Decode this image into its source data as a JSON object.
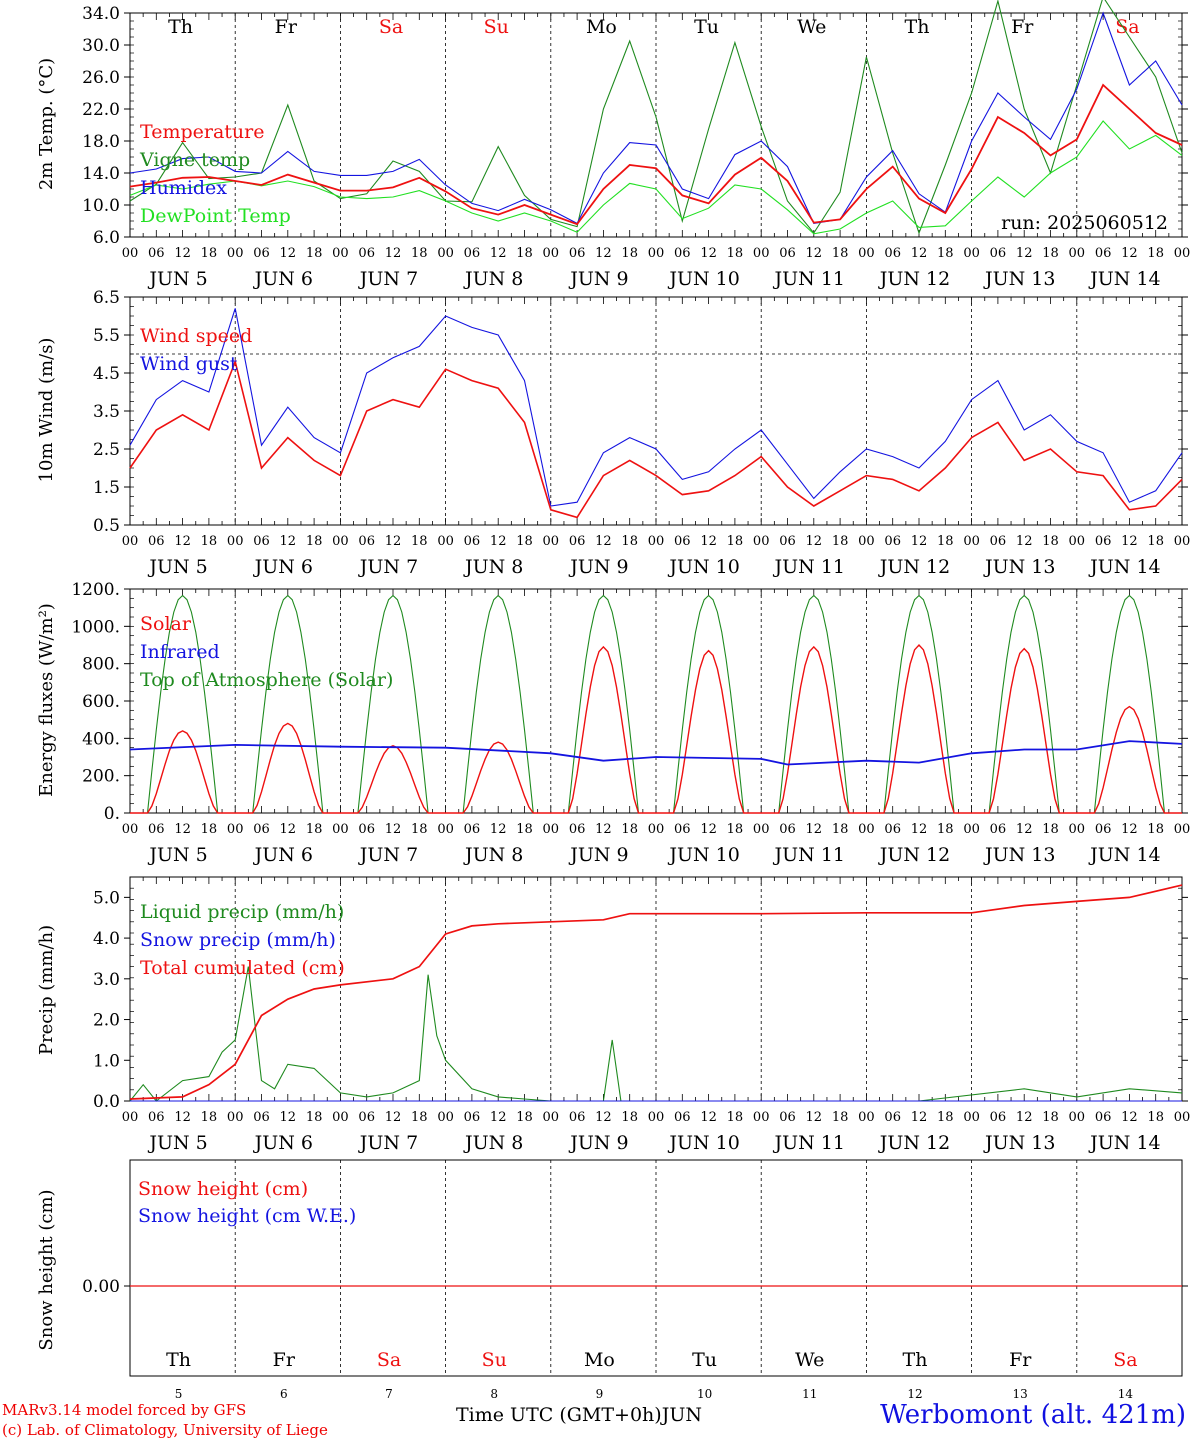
{
  "credits": {
    "line1": "MARv3.14 model forced by GFS",
    "line2": "(c) Lab. of Climatology, University of Liege"
  },
  "station": "Werbomont (alt. 421m)",
  "x_axis_title": "Time UTC (GMT+0h)",
  "month": "JUN",
  "run_label": "run: 2025060512",
  "days": [
    {
      "abbr": "Th",
      "date": 5,
      "weekend": false
    },
    {
      "abbr": "Fr",
      "date": 6,
      "weekend": false
    },
    {
      "abbr": "Sa",
      "date": 7,
      "weekend": true
    },
    {
      "abbr": "Su",
      "date": 8,
      "weekend": true
    },
    {
      "abbr": "Mo",
      "date": 9,
      "weekend": false
    },
    {
      "abbr": "Tu",
      "date": 10,
      "weekend": false
    },
    {
      "abbr": "We",
      "date": 11,
      "weekend": false
    },
    {
      "abbr": "Th",
      "date": 12,
      "weekend": false
    },
    {
      "abbr": "Fr",
      "date": 13,
      "weekend": false
    },
    {
      "abbr": "Sa",
      "date": 14,
      "weekend": true
    }
  ],
  "hour_ticks": [
    "00",
    "06",
    "12",
    "18"
  ],
  "colors": {
    "red": "#ee1111",
    "green": "#1f8a1f",
    "blue": "#1414e0",
    "lightgreen": "#22e022",
    "weekend": "#ee1111"
  },
  "chart_data": [
    {
      "type": "line",
      "ylabel": "2m Temp. (°C)",
      "ylim": [
        6.0,
        34.0
      ],
      "yticks": [
        "6.0",
        "10.0",
        "14.0",
        "18.0",
        "22.0",
        "26.0",
        "30.0",
        "34.0"
      ],
      "x_unit": "hours since JUN 5 00 UTC",
      "series": [
        {
          "name": "Temperature",
          "color": "red",
          "x": [
            0,
            6,
            12,
            18,
            24,
            30,
            36,
            42,
            48,
            54,
            60,
            66,
            72,
            78,
            84,
            90,
            96,
            102,
            108,
            114,
            120,
            126,
            132,
            138,
            144,
            150,
            156,
            162,
            168,
            174,
            180,
            186,
            192,
            198,
            204,
            210,
            216,
            222,
            228,
            234,
            240
          ],
          "values": [
            12.3,
            12.8,
            13.4,
            13.5,
            13.0,
            12.5,
            13.8,
            12.8,
            11.8,
            11.8,
            12.2,
            13.4,
            11.7,
            9.6,
            8.8,
            10.0,
            8.8,
            7.6,
            12.0,
            15.0,
            14.6,
            11.2,
            10.2,
            13.8,
            15.9,
            13.0,
            7.8,
            8.2,
            12.0,
            14.8,
            10.8,
            9.0,
            14.5,
            21.0,
            19.0,
            16.2,
            18.2,
            25.0,
            22.0,
            19.0,
            17.5
          ]
        },
        {
          "name": "Vigne temp",
          "color": "green",
          "x": [
            0,
            6,
            12,
            18,
            24,
            30,
            36,
            42,
            48,
            54,
            60,
            66,
            72,
            78,
            84,
            90,
            96,
            102,
            108,
            114,
            120,
            126,
            132,
            138,
            144,
            150,
            156,
            162,
            168,
            174,
            180,
            186,
            192,
            198,
            204,
            210,
            216,
            222,
            228,
            234,
            240
          ],
          "values": [
            10.5,
            12.6,
            17.8,
            13.3,
            13.5,
            14.0,
            22.5,
            13.0,
            10.8,
            11.4,
            15.5,
            14.2,
            10.5,
            10.4,
            17.3,
            11.2,
            8.2,
            7.3,
            22.0,
            30.5,
            21.0,
            8.0,
            19.5,
            30.3,
            19.8,
            10.5,
            6.5,
            11.6,
            28.5,
            16.5,
            6.5,
            15.0,
            24.0,
            35.5,
            22.0,
            14.0,
            25.0,
            36.0,
            31.0,
            26.0,
            16.5
          ]
        },
        {
          "name": "Humidex",
          "color": "blue",
          "x": [
            0,
            6,
            12,
            18,
            24,
            30,
            36,
            42,
            48,
            54,
            60,
            66,
            72,
            78,
            84,
            90,
            96,
            102,
            108,
            114,
            120,
            126,
            132,
            138,
            144,
            150,
            156,
            162,
            168,
            174,
            180,
            186,
            192,
            198,
            204,
            210,
            216,
            222,
            228,
            234,
            240
          ],
          "values": [
            14.0,
            14.5,
            15.8,
            16.0,
            14.2,
            14.0,
            16.7,
            14.2,
            13.7,
            13.7,
            14.2,
            15.7,
            12.5,
            10.2,
            9.3,
            10.7,
            9.4,
            7.7,
            14.0,
            17.8,
            17.5,
            12.0,
            10.8,
            16.3,
            18.0,
            14.8,
            7.7,
            8.2,
            13.5,
            16.8,
            11.4,
            9.1,
            18.0,
            24.0,
            21.0,
            18.2,
            24.5,
            34.0,
            25.0,
            28.0,
            22.5
          ]
        },
        {
          "name": "DewPoint Temp",
          "color": "lightgreen",
          "x": [
            0,
            6,
            12,
            18,
            24,
            30,
            36,
            42,
            48,
            54,
            60,
            66,
            72,
            78,
            84,
            90,
            96,
            102,
            108,
            114,
            120,
            126,
            132,
            138,
            144,
            150,
            156,
            162,
            168,
            174,
            180,
            186,
            192,
            198,
            204,
            210,
            216,
            222,
            228,
            234,
            240
          ],
          "values": [
            11.2,
            12.5,
            12.0,
            12.6,
            13.0,
            12.4,
            13.0,
            12.3,
            11.0,
            10.8,
            11.0,
            11.8,
            10.5,
            9.0,
            8.0,
            9.0,
            8.0,
            6.6,
            10.0,
            12.7,
            12.0,
            8.3,
            9.6,
            12.5,
            12.0,
            9.4,
            6.4,
            7.0,
            9.0,
            10.5,
            7.2,
            7.4,
            10.5,
            13.5,
            11.0,
            14.0,
            16.0,
            20.5,
            17.0,
            18.7,
            16.2
          ]
        }
      ]
    },
    {
      "type": "line",
      "ylabel": "10m Wind (m/s)",
      "ylim": [
        0.5,
        6.5
      ],
      "yticks": [
        "0.5",
        "1.5",
        "2.5",
        "3.5",
        "4.5",
        "5.5",
        "6.5"
      ],
      "x_unit": "hours since JUN 5 00 UTC",
      "series": [
        {
          "name": "Wind speed",
          "color": "red",
          "x": [
            0,
            6,
            12,
            18,
            24,
            30,
            36,
            42,
            48,
            54,
            60,
            66,
            72,
            78,
            84,
            90,
            96,
            102,
            108,
            114,
            120,
            126,
            132,
            138,
            144,
            150,
            156,
            162,
            168,
            174,
            180,
            186,
            192,
            198,
            204,
            210,
            216,
            222,
            228,
            234,
            240
          ],
          "values": [
            2.0,
            3.0,
            3.4,
            3.0,
            4.8,
            2.0,
            2.8,
            2.2,
            1.8,
            3.5,
            3.8,
            3.6,
            4.6,
            4.3,
            4.1,
            3.2,
            0.9,
            0.7,
            1.8,
            2.2,
            1.8,
            1.3,
            1.4,
            1.8,
            2.3,
            1.5,
            1.0,
            1.4,
            1.8,
            1.7,
            1.4,
            2.0,
            2.8,
            3.2,
            2.2,
            2.5,
            1.9,
            1.8,
            0.9,
            1.0,
            1.7
          ]
        },
        {
          "name": "Wind gust",
          "color": "blue",
          "x": [
            0,
            6,
            12,
            18,
            24,
            30,
            36,
            42,
            48,
            54,
            60,
            66,
            72,
            78,
            84,
            90,
            96,
            102,
            108,
            114,
            120,
            126,
            132,
            138,
            144,
            150,
            156,
            162,
            168,
            174,
            180,
            186,
            192,
            198,
            204,
            210,
            216,
            222,
            228,
            234,
            240
          ],
          "values": [
            2.6,
            3.8,
            4.3,
            4.0,
            6.2,
            2.6,
            3.6,
            2.8,
            2.4,
            4.5,
            4.9,
            5.2,
            6.0,
            5.7,
            5.5,
            4.3,
            1.0,
            1.1,
            2.4,
            2.8,
            2.5,
            1.7,
            1.9,
            2.5,
            3.0,
            2.1,
            1.2,
            1.9,
            2.5,
            2.3,
            2.0,
            2.7,
            3.8,
            4.3,
            3.0,
            3.4,
            2.7,
            2.4,
            1.1,
            1.4,
            2.4
          ]
        }
      ]
    },
    {
      "type": "line",
      "ylabel": "Energy fluxes (W/m²)",
      "ylim": [
        0,
        1200
      ],
      "yticks": [
        "0.",
        "200.",
        "400.",
        "600.",
        "800.",
        "1000.",
        "1200."
      ],
      "x_unit": "hours since JUN 5 00 UTC",
      "solar_noon_peaks": [
        {
          "day_hour": 12,
          "toa": 1165,
          "solar": 440
        },
        {
          "day_hour": 36,
          "toa": 1165,
          "solar": 480
        },
        {
          "day_hour": 60,
          "toa": 1165,
          "solar": 360
        },
        {
          "day_hour": 84,
          "toa": 1165,
          "solar": 380
        },
        {
          "day_hour": 108,
          "toa": 1165,
          "solar": 890
        },
        {
          "day_hour": 132,
          "toa": 1165,
          "solar": 870
        },
        {
          "day_hour": 156,
          "toa": 1165,
          "solar": 890
        },
        {
          "day_hour": 180,
          "toa": 1165,
          "solar": 900
        },
        {
          "day_hour": 204,
          "toa": 1165,
          "solar": 880
        },
        {
          "day_hour": 228,
          "toa": 1165,
          "solar": 570
        }
      ],
      "series": [
        {
          "name": "Solar",
          "color": "red"
        },
        {
          "name": "Infrared",
          "color": "blue",
          "x": [
            0,
            24,
            48,
            72,
            96,
            108,
            120,
            144,
            150,
            168,
            180,
            192,
            204,
            216,
            228,
            240
          ],
          "values": [
            340,
            365,
            355,
            350,
            320,
            280,
            300,
            290,
            260,
            280,
            270,
            320,
            340,
            340,
            385,
            370
          ]
        },
        {
          "name": "Top of Atmosphere (Solar)",
          "color": "green"
        }
      ]
    },
    {
      "type": "line",
      "ylabel": "Precip (mm/h)",
      "ylim": [
        0,
        5.5
      ],
      "yticks": [
        "0.0",
        "1.0",
        "2.0",
        "3.0",
        "4.0",
        "5.0"
      ],
      "x_unit": "hours since JUN 5 00 UTC",
      "series": [
        {
          "name": "Liquid precip (mm/h)",
          "color": "green",
          "x": [
            0,
            3,
            6,
            12,
            18,
            21,
            24,
            27,
            30,
            33,
            36,
            42,
            48,
            54,
            60,
            66,
            68,
            70,
            72,
            78,
            84,
            90,
            96,
            108,
            110,
            112,
            120,
            180,
            204,
            216,
            228,
            240
          ],
          "values": [
            0,
            0.4,
            0,
            0.5,
            0.6,
            1.2,
            1.5,
            3.3,
            0.5,
            0.3,
            0.9,
            0.8,
            0.2,
            0.1,
            0.2,
            0.5,
            3.1,
            1.6,
            1.0,
            0.3,
            0.1,
            0.05,
            0,
            0,
            1.5,
            0,
            0,
            0,
            0.3,
            0.1,
            0.3,
            0.2
          ]
        },
        {
          "name": "Snow precip (mm/h)",
          "color": "blue",
          "x": [
            0,
            240
          ],
          "values": [
            0,
            0
          ]
        },
        {
          "name": "Total cumulated (cm)",
          "color": "red",
          "x": [
            0,
            12,
            18,
            24,
            30,
            36,
            42,
            48,
            60,
            66,
            72,
            78,
            84,
            96,
            108,
            114,
            120,
            144,
            168,
            192,
            204,
            216,
            228,
            240
          ],
          "values": [
            0.05,
            0.1,
            0.4,
            0.9,
            2.1,
            2.5,
            2.75,
            2.85,
            3.0,
            3.3,
            4.1,
            4.3,
            4.35,
            4.4,
            4.45,
            4.6,
            4.6,
            4.6,
            4.62,
            4.62,
            4.8,
            4.9,
            5.0,
            5.3
          ]
        }
      ]
    },
    {
      "type": "line",
      "ylabel": "Snow height (cm)",
      "yticks": [
        "0.00"
      ],
      "x_unit": "hours since JUN 5 00 UTC",
      "series": [
        {
          "name": "Snow height (cm)",
          "color": "red",
          "x": [
            0,
            240
          ],
          "values": [
            0,
            0
          ]
        },
        {
          "name": "Snow height (cm W.E.)",
          "color": "blue",
          "x": [
            0,
            240
          ],
          "values": [
            0,
            0
          ]
        }
      ]
    }
  ]
}
